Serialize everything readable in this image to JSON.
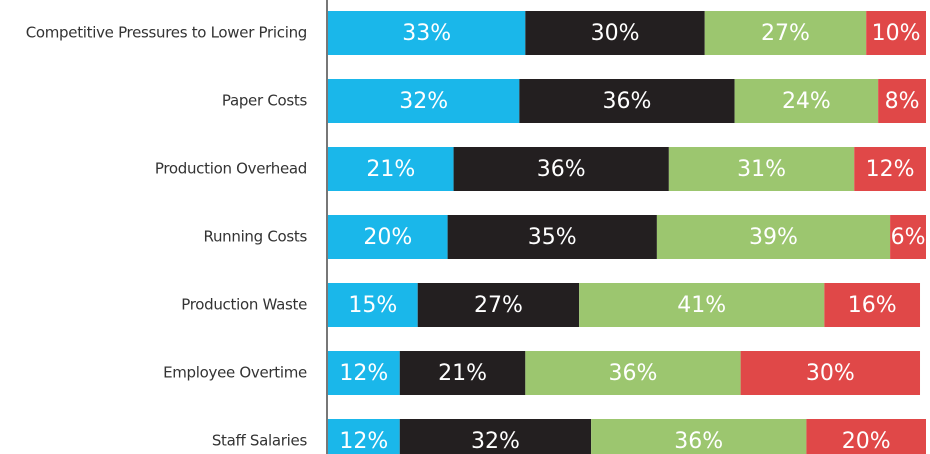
{
  "chart_data": {
    "type": "stacked_barh",
    "categories": [
      "Competitive Pressures to Lower Pricing",
      "Paper Costs",
      "Production Overhead",
      "Running Costs",
      "Production Waste",
      "Employee Overtime",
      "Staff Salaries"
    ],
    "xlim": [
      0,
      100
    ],
    "series": [
      {
        "color": "#1ab7ea",
        "values": [
          33,
          32,
          21,
          20,
          15,
          12,
          12
        ],
        "value_labels": [
          "33%",
          "32%",
          "21%",
          "20%",
          "15%",
          "12%",
          "12%"
        ]
      },
      {
        "color": "#231f20",
        "values": [
          30,
          36,
          36,
          35,
          27,
          21,
          32
        ],
        "value_labels": [
          "30%",
          "36%",
          "36%",
          "35%",
          "27%",
          "21%",
          "32%"
        ]
      },
      {
        "color": "#9cc66f",
        "values": [
          27,
          24,
          31,
          39,
          41,
          36,
          36
        ],
        "value_labels": [
          "27%",
          "24%",
          "31%",
          "39%",
          "41%",
          "36%",
          "36%"
        ]
      },
      {
        "color": "#e04848",
        "values": [
          10,
          8,
          12,
          6,
          16,
          30,
          20
        ],
        "value_labels": [
          "10%",
          "8%",
          "12%",
          "6%",
          "16%",
          "30%",
          "20%"
        ]
      }
    ]
  }
}
